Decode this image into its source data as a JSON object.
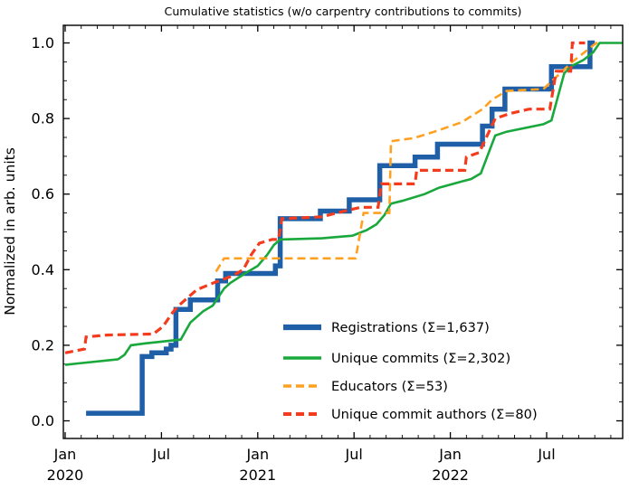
{
  "chart_data": {
    "type": "line",
    "title": "Cumulative statistics (w/o carpentry contributions to commits)",
    "ylabel": "Normalized in arb. units",
    "xlabel": "",
    "grid": false,
    "legend_position": "lower right, no frame",
    "x_axis": {
      "unit": "months since Jan 2020",
      "range_months": [
        0,
        34.74
      ],
      "minor_every_months": 1,
      "major_ticks": [
        {
          "m": 0,
          "label": "Jan",
          "year": "2020"
        },
        {
          "m": 6,
          "label": "Jul",
          "year": ""
        },
        {
          "m": 12,
          "label": "Jan",
          "year": "2021"
        },
        {
          "m": 18,
          "label": "Jul",
          "year": ""
        },
        {
          "m": 24,
          "label": "Jan",
          "year": "2022"
        },
        {
          "m": 30,
          "label": "Jul",
          "year": ""
        }
      ]
    },
    "y_axis": {
      "range": [
        -0.047,
        1.047
      ],
      "tick_values": [
        0.0,
        0.2,
        0.4,
        0.6,
        0.8,
        1.0
      ],
      "tick_labels": [
        "0.0",
        "0.2",
        "0.4",
        "0.6",
        "0.8",
        "1.0"
      ],
      "minor_step": 0.05
    },
    "series": [
      {
        "name": "Registrations",
        "legend": "Registrations  (Σ=1,637)",
        "total": "1,637",
        "color": "#1f5fa8",
        "style": "solid",
        "width": 5.5,
        "interp": "step",
        "points": [
          [
            1.3,
            0.02
          ],
          [
            4.8,
            0.17
          ],
          [
            5.4,
            0.18
          ],
          [
            6.3,
            0.19
          ],
          [
            6.6,
            0.2
          ],
          [
            6.9,
            0.295
          ],
          [
            7.8,
            0.32
          ],
          [
            9.5,
            0.37
          ],
          [
            10.0,
            0.39
          ],
          [
            13.1,
            0.41
          ],
          [
            13.4,
            0.535
          ],
          [
            15.9,
            0.555
          ],
          [
            17.7,
            0.585
          ],
          [
            19.6,
            0.675
          ],
          [
            21.8,
            0.698
          ],
          [
            23.2,
            0.732
          ],
          [
            26.0,
            0.78
          ],
          [
            26.6,
            0.825
          ],
          [
            27.4,
            0.878
          ],
          [
            30.3,
            0.937
          ],
          [
            32.7,
            1.0
          ],
          [
            33.0,
            1.0
          ]
        ]
      },
      {
        "name": "Unique commits",
        "legend": "Unique commits (Σ=2,302)",
        "total": "2,302",
        "color": "#19a83b",
        "style": "solid",
        "width": 2.6,
        "interp": "linear",
        "points": [
          [
            0,
            0.148
          ],
          [
            0.8,
            0.152
          ],
          [
            3.3,
            0.163
          ],
          [
            3.7,
            0.175
          ],
          [
            4.1,
            0.2
          ],
          [
            5.0,
            0.205
          ],
          [
            7.2,
            0.215
          ],
          [
            7.8,
            0.26
          ],
          [
            8.6,
            0.29
          ],
          [
            9.2,
            0.305
          ],
          [
            9.9,
            0.35
          ],
          [
            10.3,
            0.365
          ],
          [
            11.2,
            0.39
          ],
          [
            12.0,
            0.41
          ],
          [
            12.6,
            0.44
          ],
          [
            13.0,
            0.465
          ],
          [
            13.4,
            0.48
          ],
          [
            16.0,
            0.483
          ],
          [
            17.9,
            0.49
          ],
          [
            18.8,
            0.505
          ],
          [
            19.4,
            0.52
          ],
          [
            19.9,
            0.545
          ],
          [
            20.3,
            0.575
          ],
          [
            21.0,
            0.582
          ],
          [
            22.4,
            0.6
          ],
          [
            23.3,
            0.617
          ],
          [
            24.4,
            0.63
          ],
          [
            25.3,
            0.64
          ],
          [
            25.9,
            0.655
          ],
          [
            26.8,
            0.755
          ],
          [
            27.5,
            0.765
          ],
          [
            29.8,
            0.785
          ],
          [
            30.3,
            0.795
          ],
          [
            31.1,
            0.92
          ],
          [
            31.6,
            0.94
          ],
          [
            32.3,
            0.955
          ],
          [
            32.9,
            0.975
          ],
          [
            33.3,
            1.0
          ],
          [
            34.7,
            1.0
          ]
        ]
      },
      {
        "name": "Educators",
        "legend": "Educators (Σ=53)",
        "total": "53",
        "color": "#ffa021",
        "style": "dashed",
        "width": 2.6,
        "interp": "linear",
        "points": [
          [
            9.4,
            0.395
          ],
          [
            9.9,
            0.43
          ],
          [
            18.1,
            0.43
          ],
          [
            18.6,
            0.55
          ],
          [
            20.2,
            0.55
          ],
          [
            20.3,
            0.74
          ],
          [
            21.7,
            0.748
          ],
          [
            23.0,
            0.765
          ],
          [
            24.7,
            0.79
          ],
          [
            26.0,
            0.825
          ],
          [
            26.6,
            0.85
          ],
          [
            27.5,
            0.873
          ],
          [
            29.8,
            0.878
          ],
          [
            31.1,
            0.93
          ],
          [
            31.6,
            0.95
          ],
          [
            32.8,
            0.99
          ],
          [
            33.1,
            1.0
          ],
          [
            33.3,
            1.0
          ]
        ]
      },
      {
        "name": "Unique commit authors",
        "legend": "Unique commit authors (Σ=80)",
        "total": "80",
        "color": "#f43b1d",
        "style": "dashed",
        "width": 3.2,
        "interp": "linear",
        "points": [
          [
            0,
            0.18
          ],
          [
            1.2,
            0.19
          ],
          [
            1.3,
            0.222
          ],
          [
            2.6,
            0.227
          ],
          [
            5.5,
            0.23
          ],
          [
            6.1,
            0.25
          ],
          [
            6.7,
            0.287
          ],
          [
            7.1,
            0.306
          ],
          [
            8.2,
            0.347
          ],
          [
            9.3,
            0.366
          ],
          [
            10.4,
            0.383
          ],
          [
            11.1,
            0.4
          ],
          [
            11.6,
            0.44
          ],
          [
            12.1,
            0.47
          ],
          [
            12.9,
            0.48
          ],
          [
            13.3,
            0.48
          ],
          [
            13.5,
            0.535
          ],
          [
            16.0,
            0.54
          ],
          [
            17.4,
            0.555
          ],
          [
            18.4,
            0.565
          ],
          [
            19.5,
            0.565
          ],
          [
            19.7,
            0.627
          ],
          [
            21.8,
            0.627
          ],
          [
            21.9,
            0.663
          ],
          [
            24.9,
            0.663
          ],
          [
            25.0,
            0.698
          ],
          [
            25.8,
            0.71
          ],
          [
            26.8,
            0.8
          ],
          [
            27.7,
            0.813
          ],
          [
            28.9,
            0.825
          ],
          [
            30.2,
            0.825
          ],
          [
            30.6,
            0.925
          ],
          [
            31.5,
            0.925
          ],
          [
            31.6,
            1.0
          ],
          [
            32.4,
            1.0
          ]
        ]
      }
    ]
  }
}
